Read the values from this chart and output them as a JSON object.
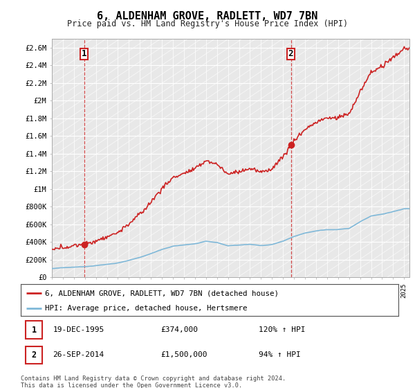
{
  "title": "6, ALDENHAM GROVE, RADLETT, WD7 7BN",
  "subtitle": "Price paid vs. HM Land Registry's House Price Index (HPI)",
  "ylim": [
    0,
    2700000
  ],
  "yticks": [
    0,
    200000,
    400000,
    600000,
    800000,
    1000000,
    1200000,
    1400000,
    1600000,
    1800000,
    2000000,
    2200000,
    2400000,
    2600000
  ],
  "ytick_labels": [
    "£0",
    "£200K",
    "£400K",
    "£600K",
    "£800K",
    "£1M",
    "£1.2M",
    "£1.4M",
    "£1.6M",
    "£1.8M",
    "£2M",
    "£2.2M",
    "£2.4M",
    "£2.6M"
  ],
  "xlim_start": 1993,
  "xlim_end": 2025.5,
  "sale1_x": 1995.97,
  "sale1_y": 374000,
  "sale2_x": 2014.74,
  "sale2_y": 1500000,
  "sale1_label": "1",
  "sale2_label": "2",
  "hpi_color": "#7fb8d8",
  "price_color": "#cc2222",
  "legend_line1": "6, ALDENHAM GROVE, RADLETT, WD7 7BN (detached house)",
  "legend_line2": "HPI: Average price, detached house, Hertsmere",
  "annotation1_date": "19-DEC-1995",
  "annotation1_price": "£374,000",
  "annotation1_hpi": "120% ↑ HPI",
  "annotation2_date": "26-SEP-2014",
  "annotation2_price": "£1,500,000",
  "annotation2_hpi": "94% ↑ HPI",
  "footer": "Contains HM Land Registry data © Crown copyright and database right 2024.\nThis data is licensed under the Open Government Licence v3.0.",
  "background_color": "#e8e8e8",
  "grid_color": "#ffffff"
}
